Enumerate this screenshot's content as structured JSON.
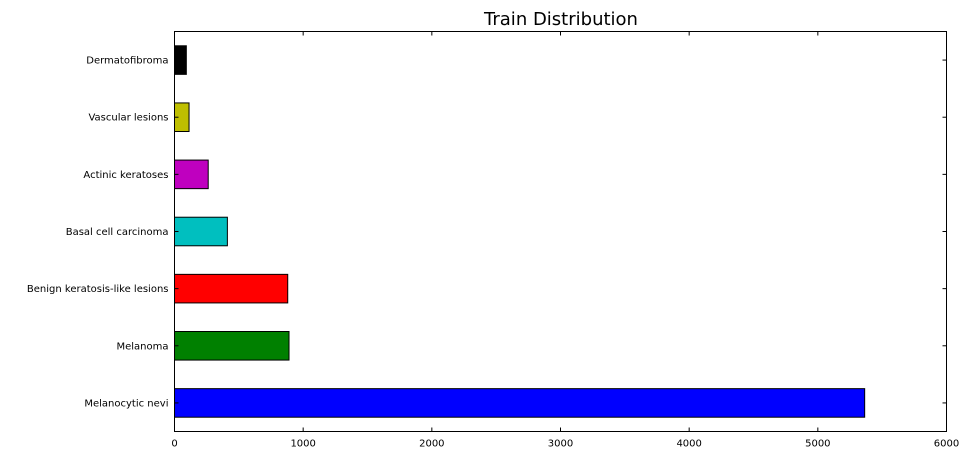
{
  "chart_data": {
    "type": "bar",
    "orientation": "horizontal",
    "title": "Train Distribution",
    "xlabel": "",
    "ylabel": "",
    "categories": [
      "Melanocytic nevi",
      "Melanoma",
      "Benign keratosis-like lesions",
      "Basal cell carcinoma",
      "Actinic keratoses",
      "Vascular lesions",
      "Dermatofibroma"
    ],
    "values": [
      5364,
      890,
      880,
      411,
      262,
      113,
      92
    ],
    "colors": [
      "#0000ff",
      "#008000",
      "#ff0000",
      "#00bfbf",
      "#bf00bf",
      "#bfbf00",
      "#000000"
    ],
    "xlim": [
      0,
      6000
    ],
    "xticks": [
      0,
      1000,
      2000,
      3000,
      4000,
      5000,
      6000
    ],
    "grid": false,
    "legend": "none"
  }
}
